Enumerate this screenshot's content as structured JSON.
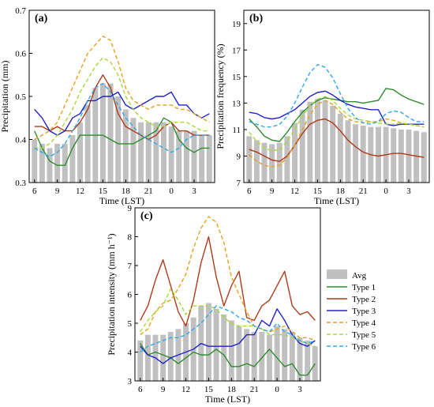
{
  "figure": {
    "legend": [
      {
        "label": "Avg",
        "kind": "bar",
        "color": "#c0c0c0"
      },
      {
        "label": "Type 1",
        "kind": "line",
        "color": "#2e8b2e"
      },
      {
        "label": "Type 2",
        "kind": "line",
        "color": "#b03a1c"
      },
      {
        "label": "Type 3",
        "kind": "line",
        "color": "#2222c8"
      },
      {
        "label": "Type 4",
        "kind": "dashed",
        "color": "#e8a020"
      },
      {
        "label": "Type 5",
        "kind": "dashed",
        "color": "#a8d838"
      },
      {
        "label": "Type 6",
        "kind": "dashed",
        "color": "#30a8e8"
      }
    ]
  },
  "chart_data": [
    {
      "type": "bar",
      "panel_label": "(a)",
      "xlabel": "Time (LST)",
      "ylabel": "Precipitation (mm)",
      "ylim": [
        0.3,
        0.7
      ],
      "yticks": [
        "0.3",
        "0.4",
        "0.5",
        "0.6",
        "0.7"
      ],
      "xticks": [
        "6",
        "9",
        "12",
        "15",
        "18",
        "21",
        "0",
        "3"
      ],
      "x": [
        "6",
        "7",
        "8",
        "9",
        "10",
        "11",
        "12",
        "13",
        "14",
        "15",
        "16",
        "17",
        "18",
        "19",
        "20",
        "21",
        "22",
        "23",
        "0",
        "1",
        "2",
        "3",
        "4",
        "5"
      ],
      "avg": [
        0.4,
        0.39,
        0.38,
        0.39,
        0.39,
        0.41,
        0.44,
        0.48,
        0.52,
        0.53,
        0.53,
        0.5,
        0.47,
        0.45,
        0.44,
        0.44,
        0.44,
        0.44,
        0.43,
        0.42,
        0.42,
        0.42,
        0.41,
        0.41
      ],
      "series": [
        {
          "name": "Type 1",
          "values": [
            0.42,
            0.38,
            0.35,
            0.34,
            0.34,
            0.38,
            0.41,
            0.41,
            0.41,
            0.41,
            0.4,
            0.39,
            0.39,
            0.39,
            0.4,
            0.41,
            0.42,
            0.45,
            0.44,
            0.4,
            0.38,
            0.37,
            0.38,
            0.38
          ]
        },
        {
          "name": "Type 2",
          "values": [
            0.43,
            0.43,
            0.42,
            0.43,
            0.42,
            0.42,
            0.44,
            0.47,
            0.52,
            0.55,
            0.52,
            0.46,
            0.43,
            0.42,
            0.41,
            0.4,
            0.41,
            0.43,
            0.44,
            0.42,
            0.42,
            0.41,
            0.41,
            0.41
          ]
        },
        {
          "name": "Type 3",
          "values": [
            0.47,
            0.45,
            0.42,
            0.41,
            0.42,
            0.45,
            0.46,
            0.49,
            0.49,
            0.5,
            0.5,
            0.51,
            0.48,
            0.47,
            0.48,
            0.49,
            0.5,
            0.5,
            0.51,
            0.48,
            0.48,
            0.46,
            0.45,
            0.46
          ]
        },
        {
          "name": "Type 4",
          "values": [
            0.4,
            0.41,
            0.42,
            0.44,
            0.48,
            0.52,
            0.56,
            0.6,
            0.62,
            0.64,
            0.63,
            0.58,
            0.52,
            0.49,
            0.48,
            0.47,
            0.48,
            0.48,
            0.48,
            0.47,
            0.47,
            0.46,
            0.45,
            0.44
          ]
        },
        {
          "name": "Type 5",
          "values": [
            0.38,
            0.38,
            0.39,
            0.41,
            0.44,
            0.47,
            0.51,
            0.54,
            0.57,
            0.59,
            0.58,
            0.55,
            0.5,
            0.47,
            0.45,
            0.44,
            0.43,
            0.43,
            0.44,
            0.44,
            0.44,
            0.43,
            0.42,
            0.42
          ]
        },
        {
          "name": "Type 6",
          "values": [
            0.38,
            0.37,
            0.36,
            0.37,
            0.39,
            0.42,
            0.45,
            0.49,
            0.52,
            0.53,
            0.51,
            0.48,
            0.45,
            0.43,
            0.41,
            0.4,
            0.39,
            0.38,
            0.37,
            0.38,
            0.4,
            0.41,
            0.41,
            0.41
          ]
        }
      ]
    },
    {
      "type": "bar",
      "panel_label": "(b)",
      "xlabel": "Time (LST)",
      "ylabel": "Precipitation frequency (%)",
      "ylim": [
        7,
        20
      ],
      "yticks": [
        "7",
        "9",
        "11",
        "13",
        "15",
        "17",
        "19"
      ],
      "xticks": [
        "6",
        "9",
        "12",
        "15",
        "18",
        "21",
        "0",
        "3"
      ],
      "x": [
        "6",
        "7",
        "8",
        "9",
        "10",
        "11",
        "12",
        "13",
        "14",
        "15",
        "16",
        "17",
        "18",
        "19",
        "20",
        "21",
        "22",
        "23",
        "0",
        "1",
        "2",
        "3",
        "4",
        "5"
      ],
      "avg": [
        10.5,
        10.2,
        10.0,
        9.9,
        10.0,
        10.5,
        11.5,
        12.5,
        13.1,
        13.3,
        13.2,
        12.8,
        12.2,
        11.7,
        11.4,
        11.3,
        11.2,
        11.2,
        11.2,
        11.1,
        11.0,
        11.0,
        10.9,
        10.8
      ],
      "series": [
        {
          "name": "Type 1",
          "values": [
            11.8,
            11.2,
            10.5,
            10.2,
            10.1,
            10.8,
            11.6,
            12.3,
            12.8,
            13.2,
            13.4,
            13.3,
            13.2,
            13.1,
            13.1,
            13.0,
            13.1,
            13.2,
            14.1,
            14.0,
            13.6,
            13.3,
            13.1,
            12.9
          ]
        },
        {
          "name": "Type 2",
          "values": [
            9.5,
            9.3,
            9.0,
            8.7,
            8.6,
            9.0,
            9.8,
            10.7,
            11.4,
            11.7,
            11.8,
            11.5,
            10.9,
            10.2,
            9.7,
            9.3,
            9.1,
            9.0,
            9.1,
            9.2,
            9.2,
            9.1,
            9.0,
            8.9
          ]
        },
        {
          "name": "Type 3",
          "values": [
            12.3,
            12.2,
            11.9,
            11.8,
            11.9,
            12.2,
            12.5,
            13.0,
            13.5,
            13.8,
            13.9,
            13.6,
            13.2,
            12.9,
            12.7,
            12.6,
            12.5,
            12.5,
            11.4,
            11.3,
            11.4,
            11.4,
            11.4,
            11.4
          ]
        },
        {
          "name": "Type 4",
          "values": [
            9.1,
            8.6,
            8.3,
            8.2,
            8.3,
            8.9,
            9.8,
            11.0,
            12.1,
            12.9,
            13.2,
            12.9,
            12.3,
            11.8,
            11.6,
            11.5,
            11.6,
            11.6,
            11.8,
            11.7,
            11.5,
            11.4,
            11.3,
            11.2
          ]
        },
        {
          "name": "Type 5",
          "values": [
            10.8,
            10.1,
            9.6,
            9.4,
            9.5,
            10.1,
            11.0,
            12.0,
            12.8,
            13.3,
            13.5,
            13.2,
            12.6,
            12.1,
            11.8,
            11.7,
            11.6,
            11.5,
            11.4,
            11.4,
            11.5,
            11.4,
            11.3,
            11.2
          ]
        },
        {
          "name": "Type 6",
          "values": [
            11.6,
            11.4,
            11.2,
            11.2,
            11.4,
            12.0,
            13.0,
            14.2,
            15.3,
            15.9,
            15.7,
            14.9,
            13.7,
            12.6,
            11.9,
            11.5,
            11.4,
            11.6,
            12.2,
            12.4,
            12.3,
            11.9,
            11.6,
            11.6
          ]
        }
      ]
    },
    {
      "type": "bar",
      "panel_label": "(c)",
      "xlabel": "Time (LST)",
      "ylabel": "Precipitation intensity (mm h⁻¹)",
      "ylim": [
        3,
        9
      ],
      "yticks": [
        "3",
        "4",
        "5",
        "6",
        "7",
        "8",
        "9"
      ],
      "xticks": [
        "6",
        "9",
        "12",
        "15",
        "18",
        "21",
        "0",
        "3"
      ],
      "x": [
        "6",
        "7",
        "8",
        "9",
        "10",
        "11",
        "12",
        "13",
        "14",
        "15",
        "16",
        "17",
        "18",
        "19",
        "20",
        "21",
        "22",
        "23",
        "0",
        "1",
        "2",
        "3",
        "4",
        "5"
      ],
      "avg": [
        4.4,
        4.6,
        4.6,
        4.6,
        4.7,
        4.8,
        5.0,
        5.2,
        5.6,
        5.7,
        5.5,
        5.3,
        5.1,
        4.9,
        4.8,
        4.7,
        4.7,
        4.6,
        4.9,
        4.8,
        4.7,
        4.5,
        4.4,
        4.2
      ],
      "series": [
        {
          "name": "Type 1",
          "values": [
            4.3,
            3.9,
            4.0,
            3.9,
            3.8,
            3.6,
            3.8,
            4.0,
            3.9,
            3.9,
            4.1,
            3.9,
            3.5,
            3.5,
            3.6,
            3.5,
            3.8,
            4.1,
            3.8,
            3.5,
            3.6,
            3.2,
            3.2,
            3.6
          ]
        },
        {
          "name": "Type 2",
          "values": [
            5.1,
            5.6,
            6.5,
            7.2,
            6.3,
            5.4,
            4.9,
            5.8,
            7.1,
            8.0,
            6.6,
            5.6,
            6.3,
            6.8,
            5.2,
            5.1,
            5.6,
            5.8,
            6.3,
            6.8,
            5.6,
            5.3,
            5.4,
            5.1
          ]
        },
        {
          "name": "Type 3",
          "values": [
            4.2,
            3.9,
            3.8,
            3.6,
            3.8,
            3.9,
            4.0,
            4.1,
            4.3,
            4.2,
            4.2,
            4.2,
            4.2,
            4.3,
            4.6,
            4.6,
            5.1,
            4.9,
            5.5,
            5.1,
            4.6,
            4.3,
            4.2,
            4.4
          ]
        },
        {
          "name": "Type 4",
          "values": [
            4.6,
            4.8,
            5.4,
            5.7,
            5.8,
            6.2,
            6.7,
            7.6,
            8.3,
            8.7,
            8.5,
            7.8,
            6.6,
            6.0,
            5.4,
            4.9,
            4.8,
            4.7,
            4.8,
            4.9,
            4.7,
            4.5,
            4.5,
            4.4
          ]
        },
        {
          "name": "Type 5",
          "values": [
            4.7,
            5.1,
            5.4,
            5.6,
            6.2,
            5.8,
            5.3,
            5.6,
            5.6,
            5.6,
            5.5,
            5.2,
            5.0,
            4.9,
            4.9,
            4.9,
            4.8,
            4.6,
            4.6,
            4.6,
            4.5,
            4.4,
            4.3,
            4.2
          ]
        },
        {
          "name": "Type 6",
          "values": [
            4.0,
            4.2,
            4.3,
            4.4,
            4.5,
            4.5,
            4.6,
            4.8,
            5.0,
            5.3,
            5.6,
            5.5,
            5.4,
            5.2,
            5.1,
            4.9,
            4.8,
            4.7,
            5.0,
            4.7,
            4.6,
            4.4,
            4.3,
            4.4
          ]
        }
      ]
    }
  ]
}
